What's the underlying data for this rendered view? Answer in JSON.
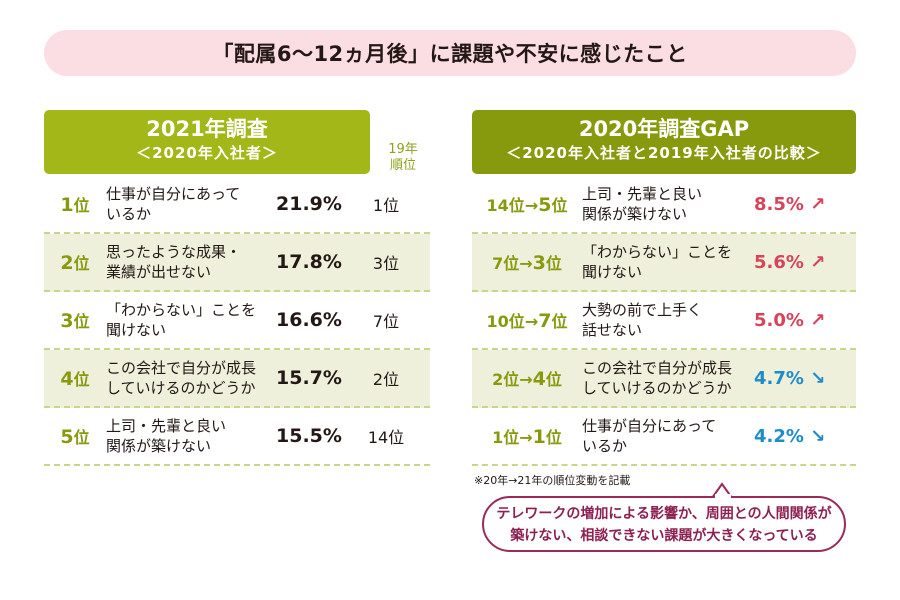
{
  "title": "「配属6〜12ヵ月後」に課題や不安に感じたこと",
  "left_panel": {
    "heading": "2021年調査",
    "subheading": "＜2020年入社者＞",
    "prev_rank_header": [
      "19年",
      "順位"
    ],
    "rows": [
      {
        "rank": "1",
        "unit": "位",
        "label": [
          "仕事が自分にあって",
          "いるか"
        ],
        "pct": "21.9%",
        "prev": "1位"
      },
      {
        "rank": "2",
        "unit": "位",
        "label": [
          "思ったような成果・",
          "業績が出せない"
        ],
        "pct": "17.8%",
        "prev": "3位"
      },
      {
        "rank": "3",
        "unit": "位",
        "label": [
          "「わからない」ことを",
          "聞けない"
        ],
        "pct": "16.6%",
        "prev": "7位"
      },
      {
        "rank": "4",
        "unit": "位",
        "label": [
          "この会社で自分が成長",
          "していけるのかどうか"
        ],
        "pct": "15.7%",
        "prev": "2位"
      },
      {
        "rank": "5",
        "unit": "位",
        "label": [
          "上司・先輩と良い",
          "関係が築けない"
        ],
        "pct": "15.5%",
        "prev": "14位"
      }
    ]
  },
  "right_panel": {
    "heading": "2020年調査GAP",
    "subheading": "＜2020年入社者と2019年入社者の比較＞",
    "rows": [
      {
        "from": "14位",
        "arrow": "→",
        "to": "5",
        "unit": "位",
        "label": [
          "上司・先輩と良い",
          "関係が築けない"
        ],
        "gap": "8.5%",
        "dir": "up",
        "dir_glyph": "↗"
      },
      {
        "from": "7位",
        "arrow": "→",
        "to": "3",
        "unit": "位",
        "label": [
          "「わからない」ことを",
          "聞けない"
        ],
        "gap": "5.6%",
        "dir": "up",
        "dir_glyph": "↗"
      },
      {
        "from": "10位",
        "arrow": "→",
        "to": "7",
        "unit": "位",
        "label": [
          "大勢の前で上手く",
          "話せない"
        ],
        "gap": "5.0%",
        "dir": "up",
        "dir_glyph": "↗"
      },
      {
        "from": "2位",
        "arrow": "→",
        "to": "4",
        "unit": "位",
        "label": [
          "この会社で自分が成長",
          "していけるのかどうか"
        ],
        "gap": "4.7%",
        "dir": "down",
        "dir_glyph": "↘"
      },
      {
        "from": "1位",
        "arrow": "→",
        "to": "1",
        "unit": "位",
        "label": [
          "仕事が自分にあって",
          "いるか"
        ],
        "gap": "4.2%",
        "dir": "down",
        "dir_glyph": "↘"
      }
    ]
  },
  "note": "※20年→21年の順位変動を記載",
  "callout": [
    "テレワークの増加による影響か、周囲との人間関係が",
    "築けない、相談できない課題が大きくなっている"
  ],
  "colors": {
    "accent_green": "#a3b718",
    "dark_green": "#879a0e",
    "up_red": "#d7435a",
    "down_blue": "#1d8cc8",
    "callout": "#9c2a58",
    "title_bg": "#fbdde4"
  },
  "chart_data": {
    "type": "table",
    "title": "「配属6〜12ヵ月後」に課題や不安に感じたこと",
    "tables": [
      {
        "name": "2021年調査 ＜2020年入社者＞",
        "columns": [
          "rank",
          "item",
          "percent",
          "19年順位"
        ],
        "rows": [
          [
            1,
            "仕事が自分にあっているか",
            21.9,
            1
          ],
          [
            2,
            "思ったような成果・業績が出せない",
            17.8,
            3
          ],
          [
            3,
            "「わからない」ことを聞けない",
            16.6,
            7
          ],
          [
            4,
            "この会社で自分が成長していけるのかどうか",
            15.7,
            2
          ],
          [
            5,
            "上司・先輩と良い関係が築けない",
            15.5,
            14
          ]
        ]
      },
      {
        "name": "2020年調査GAP ＜2020年入社者と2019年入社者の比較＞",
        "columns": [
          "rank_20",
          "rank_21",
          "item",
          "gap_percent",
          "direction"
        ],
        "rows": [
          [
            14,
            5,
            "上司・先輩と良い関係が築けない",
            8.5,
            "up"
          ],
          [
            7,
            3,
            "「わからない」ことを聞けない",
            5.6,
            "up"
          ],
          [
            10,
            7,
            "大勢の前で上手く話せない",
            5.0,
            "up"
          ],
          [
            2,
            4,
            "この会社で自分が成長していけるのかどうか",
            4.7,
            "down"
          ],
          [
            1,
            1,
            "仕事が自分にあっているか",
            4.2,
            "down"
          ]
        ]
      }
    ]
  }
}
